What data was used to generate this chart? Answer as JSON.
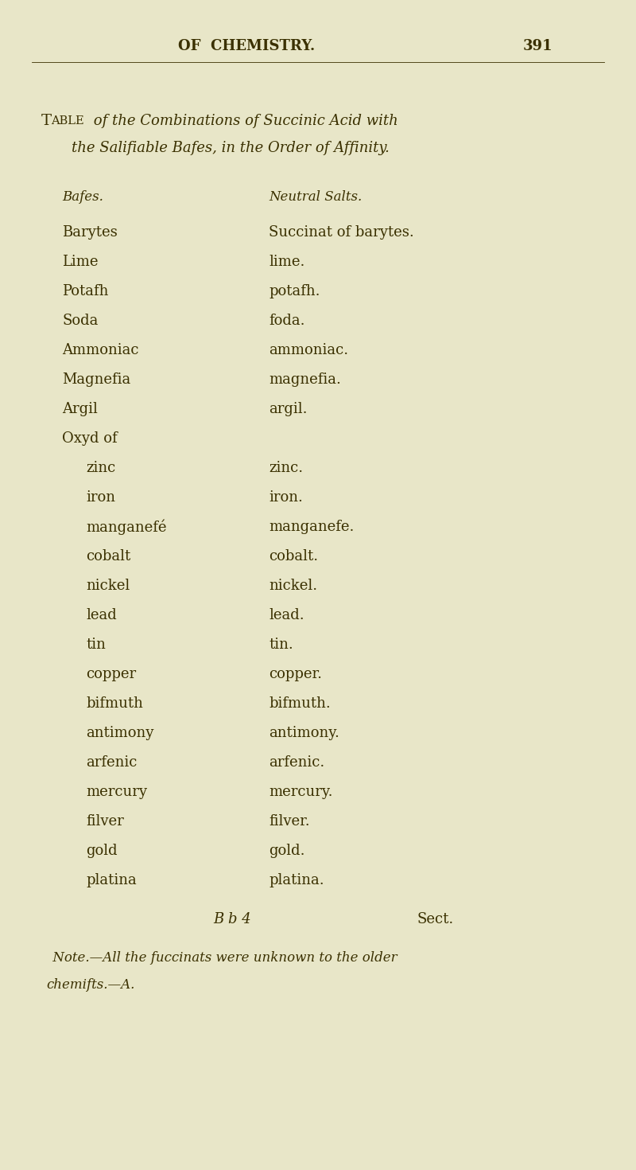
{
  "bg_color": "#e8e6c8",
  "text_color": "#3a3000",
  "header_line": "OF  CHEMISTRY.",
  "page_num": "391",
  "col_header_bases": "Bafes.",
  "col_header_salts": "Neutral Salts.",
  "bases": [
    "Barytes",
    "Lime",
    "Potafh",
    "Soda",
    "Ammoniac",
    "Magnefia",
    "Argil",
    "Oxyd of",
    "    zinc",
    "    iron",
    "    manganefé",
    "    cobalt",
    "    nickel",
    "    lead",
    "    tin",
    "    copper",
    "    bifmuth",
    "    antimony",
    "    arfenic",
    "    mercury",
    "    filver",
    "    gold",
    "    platina"
  ],
  "salts": [
    "Succinat of barytes.",
    "lime.",
    "potafh.",
    "foda.",
    "ammoniac.",
    "magnefia.",
    "argil.",
    "",
    "zinc.",
    "iron.",
    "manganefe.",
    "cobalt.",
    "nickel.",
    "lead.",
    "tin.",
    "copper.",
    "bifmuth.",
    "antimony.",
    "arfenic.",
    "mercury.",
    "filver.",
    "gold.",
    "platina."
  ],
  "footer_center": "B b 4",
  "footer_right": "Sect.",
  "note_line1": "Note.—All the fuccinats were unknown to the older",
  "note_line2": "chemifts.—A."
}
